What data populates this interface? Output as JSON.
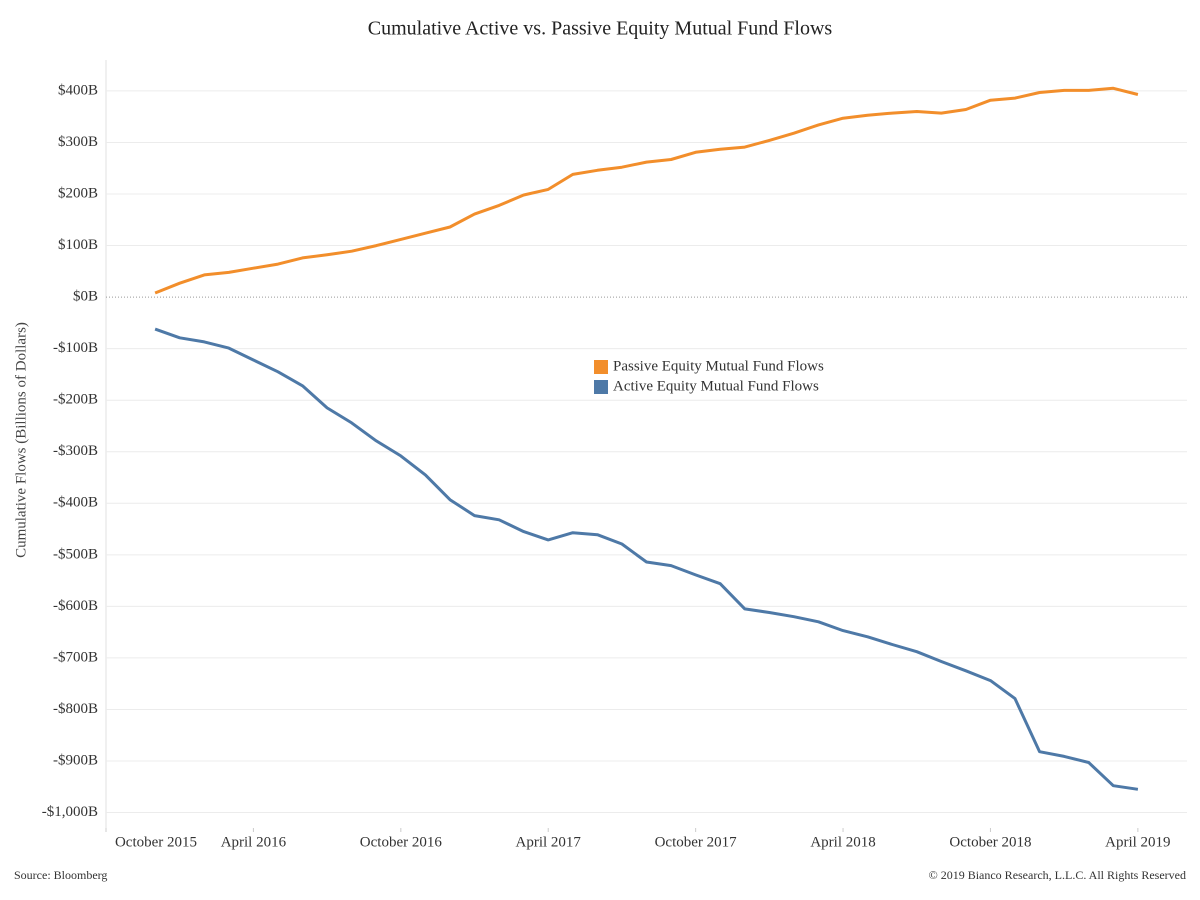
{
  "chart_data": {
    "type": "line",
    "title": "Cumulative Active vs. Passive Equity Mutual Fund Flows",
    "y_label": "Cumulative Flows (Billions of Dollars)",
    "source": "Source: Bloomberg",
    "copyright": "© 2019 Bianco Research, L.L.C. All Rights Reserved",
    "x": [
      "2015-12",
      "2016-01",
      "2016-02",
      "2016-03",
      "2016-04",
      "2016-05",
      "2016-06",
      "2016-07",
      "2016-08",
      "2016-09",
      "2016-10",
      "2016-11",
      "2016-12",
      "2017-01",
      "2017-02",
      "2017-03",
      "2017-04",
      "2017-05",
      "2017-06",
      "2017-07",
      "2017-08",
      "2017-09",
      "2017-10",
      "2017-11",
      "2017-12",
      "2018-01",
      "2018-02",
      "2018-03",
      "2018-04",
      "2018-05",
      "2018-06",
      "2018-07",
      "2018-08",
      "2018-09",
      "2018-10",
      "2018-11",
      "2018-12",
      "2019-01",
      "2019-02",
      "2019-03",
      "2019-04"
    ],
    "series": [
      {
        "name": "Passive Equity Mutual Fund Flows",
        "color": "#f28e2b",
        "values": [
          8,
          27,
          43,
          48,
          56,
          64,
          76,
          82,
          89,
          100,
          112,
          124,
          136,
          161,
          178,
          198,
          209,
          238,
          246,
          252,
          262,
          267,
          281,
          287,
          291,
          304,
          318,
          334,
          347,
          353,
          357,
          360,
          357,
          364,
          382,
          386,
          397,
          401,
          401,
          405,
          393
        ]
      },
      {
        "name": "Active Equity Mutual Fund Flows",
        "color": "#4e79a7",
        "values": [
          -62,
          -79,
          -87,
          -99,
          -122,
          -145,
          -172,
          -215,
          -244,
          -279,
          -308,
          -345,
          -393,
          -424,
          -432,
          -455,
          -471,
          -457,
          -461,
          -479,
          -514,
          -521,
          -539,
          -556,
          -605,
          -612,
          -620,
          -630,
          -647,
          -659,
          -674,
          -688,
          -707,
          -725,
          -744,
          -779,
          -882,
          -891,
          -903,
          -948,
          -955
        ]
      }
    ],
    "xlim": [
      "2015-10",
      "2019-06"
    ],
    "xticks": [
      {
        "value": "2015-10",
        "label": "October 2015"
      },
      {
        "value": "2016-04",
        "label": "April 2016"
      },
      {
        "value": "2016-10",
        "label": "October 2016"
      },
      {
        "value": "2017-04",
        "label": "April 2017"
      },
      {
        "value": "2017-10",
        "label": "October 2017"
      },
      {
        "value": "2018-04",
        "label": "April 2018"
      },
      {
        "value": "2018-10",
        "label": "October 2018"
      },
      {
        "value": "2019-04",
        "label": "April 2019"
      }
    ],
    "ylim": [
      -1030,
      460
    ],
    "yticks": [
      {
        "value": 400,
        "label": "$400B"
      },
      {
        "value": 300,
        "label": "$300B"
      },
      {
        "value": 200,
        "label": "$200B"
      },
      {
        "value": 100,
        "label": "$100B"
      },
      {
        "value": 0,
        "label": "$0B"
      },
      {
        "value": -100,
        "label": "-$100B"
      },
      {
        "value": -200,
        "label": "-$200B"
      },
      {
        "value": -300,
        "label": "-$300B"
      },
      {
        "value": -400,
        "label": "-$400B"
      },
      {
        "value": -500,
        "label": "-$500B"
      },
      {
        "value": -600,
        "label": "-$600B"
      },
      {
        "value": -700,
        "label": "-$700B"
      },
      {
        "value": -800,
        "label": "-$800B"
      },
      {
        "value": -900,
        "label": "-$900B"
      },
      {
        "value": -1000,
        "label": "-$1,000B"
      }
    ],
    "grid": true
  }
}
